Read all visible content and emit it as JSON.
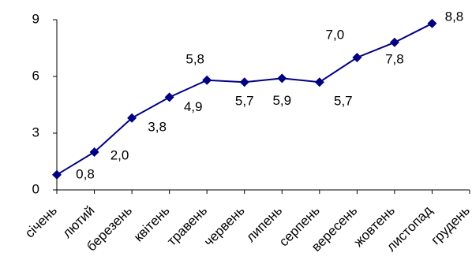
{
  "chart_data": {
    "type": "line",
    "categories": [
      "січень",
      "лютий",
      "березень",
      "квітень",
      "травень",
      "червень",
      "липень",
      "серпень",
      "вересень",
      "жовтень",
      "листопад",
      "грудень"
    ],
    "values": [
      0.8,
      2.0,
      3.8,
      4.9,
      5.8,
      5.7,
      5.9,
      5.7,
      7.0,
      7.8,
      8.8,
      null
    ],
    "value_labels": [
      "0,8",
      "2,0",
      "3,8",
      "4,9",
      "5,8",
      "5,7",
      "5,9",
      "5,7",
      "7,0",
      "7,8",
      "8,8",
      null
    ],
    "color": "#000080",
    "ylim": [
      0,
      9
    ],
    "yticks": [
      0,
      3,
      6,
      9
    ]
  }
}
